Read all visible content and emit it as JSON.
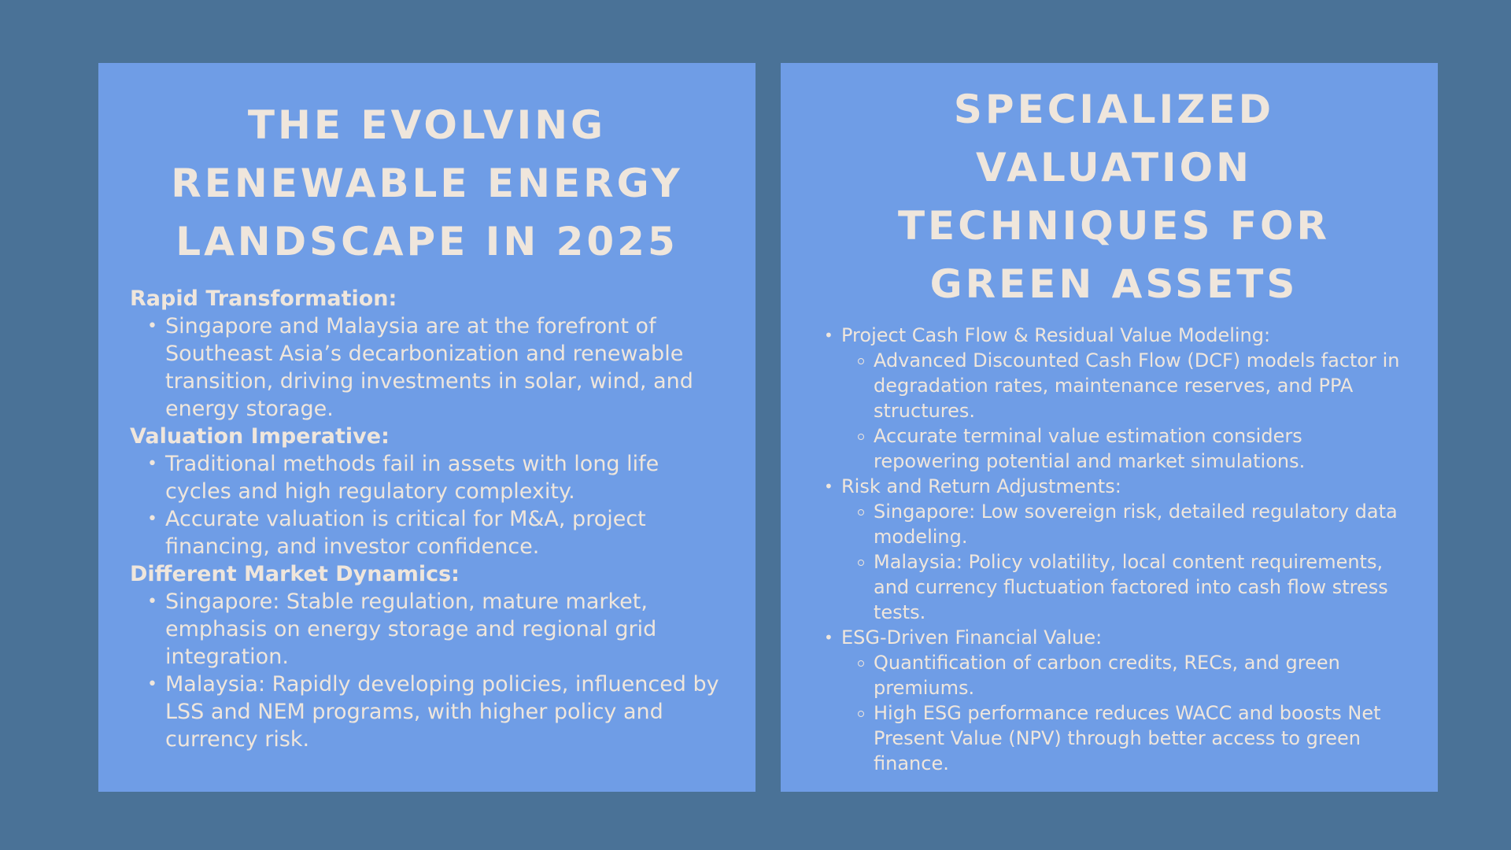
{
  "left_panel": {
    "title": "THE EVOLVING RENEWABLE ENERGY LANDSCAPE IN 2025",
    "sections": [
      {
        "heading": "Rapid Transformation:",
        "bullets": [
          " Singapore and Malaysia are at the forefront of Southeast Asia’s decarbonization and renewable transition, driving investments in solar, wind, and energy storage."
        ]
      },
      {
        "heading": "Valuation Imperative:",
        "bullets": [
          "Traditional methods fail in assets with long life cycles and high regulatory complexity.",
          "Accurate valuation is critical for M&A, project financing, and investor confidence."
        ]
      },
      {
        "heading": "Different Market Dynamics:",
        "bullets": [
          "Singapore: Stable regulation, mature market, emphasis on energy storage and regional grid integration.",
          "Malaysia: Rapidly developing policies, influenced by LSS and NEM programs, with higher policy and currency risk."
        ]
      }
    ]
  },
  "right_panel": {
    "title": "SPECIALIZED VALUATION TECHNIQUES FOR GREEN ASSETS",
    "items": [
      {
        "text": "Project Cash Flow & Residual Value Modeling:",
        "sub": [
          "Advanced Discounted Cash Flow (DCF) models factor in degradation rates, maintenance reserves, and PPA structures.",
          "Accurate terminal value estimation considers repowering potential and market simulations."
        ]
      },
      {
        "text": "Risk and Return Adjustments:",
        "sub": [
          "Singapore: Low sovereign risk, detailed regulatory data modeling.",
          "Malaysia: Policy volatility, local content requirements, and currency fluctuation factored into cash flow stress tests."
        ]
      },
      {
        "text": "ESG-Driven Financial Value:",
        "sub": [
          "Quantification of carbon credits, RECs, and green premiums.",
          "High ESG performance reduces WACC and boosts Net Present Value (NPV) through better access to green finance."
        ]
      }
    ]
  },
  "colors": {
    "background": "#4a7297",
    "panel": "#6f9de6",
    "text": "#efe6dc"
  }
}
